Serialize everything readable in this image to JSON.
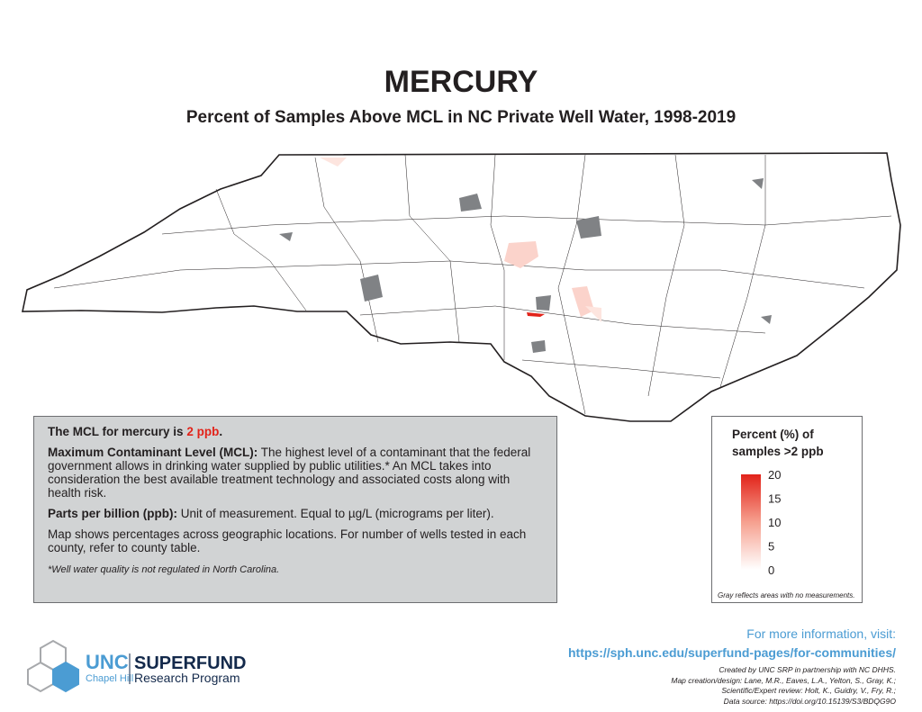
{
  "title": "MERCURY",
  "subtitle": "Percent of Samples Above MCL in NC Private Well Water, 1998-2019",
  "info_box": {
    "mcl_prefix": "The MCL for mercury is",
    "mcl_value": "2 ppb",
    "mcl_suffix": ".",
    "mcl_term": "Maximum Contaminant Level (MCL):",
    "mcl_text": "The highest level of a contaminant that the federal government allows in drinking water supplied by public utilities.* An MCL takes into consideration the best available treatment technology and associated costs along with health risk.",
    "ppb_term": "Parts per billion (ppb):",
    "ppb_text": "Unit of measurement. Equal to µg/L (micrograms per liter).",
    "map_note": "Map shows percentages across geographic locations. For number of wells tested in each county, refer to county table.",
    "footnote": "*Well water quality is not regulated in North Carolina."
  },
  "legend": {
    "title": "Percent (%) of samples >2 ppb",
    "range": [
      0,
      20
    ],
    "ticks": [
      0,
      5,
      10,
      15,
      20
    ],
    "note": "Gray reflects areas with no measurements."
  },
  "footer": {
    "info_label": "For more information, visit:",
    "url": "https://sph.unc.edu/superfund-pages/for-communities/",
    "credits": [
      "Created by UNC SRP in partnership with NC DHHS.",
      "Map creation/design: Lane, M.R., Eaves, L.A., Yelton, S., Gray, K.;",
      "Scientific/Expert review: Holt, K., Guidry, V., Fry, R.;",
      "Data source: https://doi.org/10.15139/S3/BDQG9O"
    ]
  },
  "logo": {
    "unc": "UNC",
    "chapel_hill": "Chapel Hill",
    "superfund": "SUPERFUND",
    "program": "Research Program"
  }
}
